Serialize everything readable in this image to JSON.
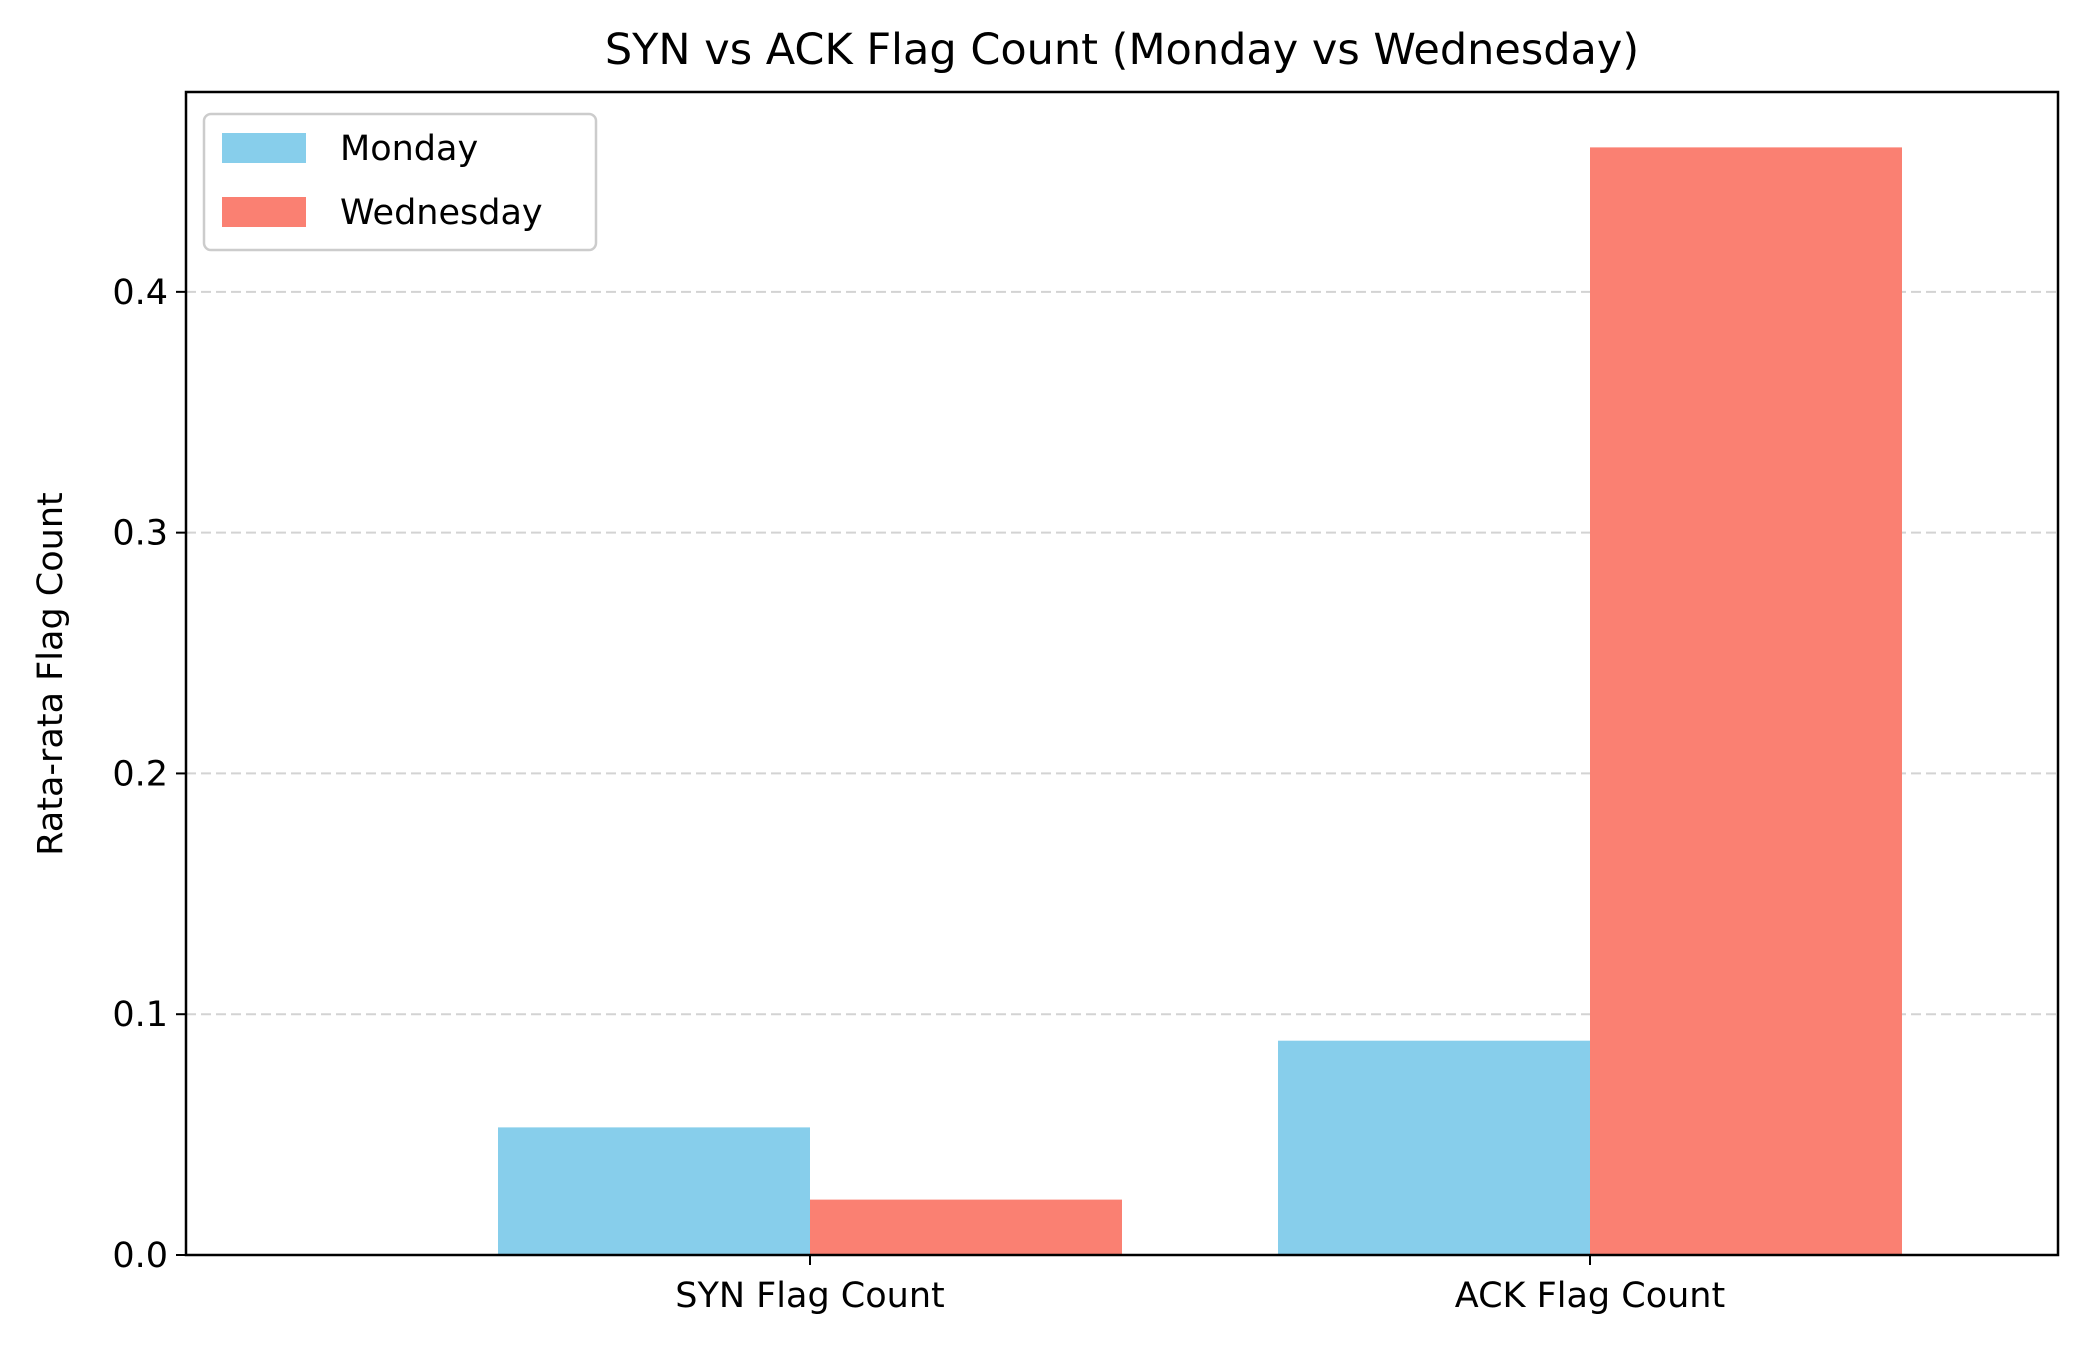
{
  "chart_data": {
    "type": "bar",
    "title": "SYN vs ACK Flag Count (Monday vs Wednesday)",
    "xlabel": "",
    "ylabel": "Rata-rata Flag Count",
    "categories": [
      "SYN Flag Count",
      "ACK Flag Count"
    ],
    "series": [
      {
        "name": "Monday",
        "values": [
          0.053,
          0.089
        ],
        "color": "#87CEEB"
      },
      {
        "name": "Wednesday",
        "values": [
          0.023,
          0.46
        ],
        "color": "#FA8072"
      }
    ],
    "ylim": [
      0,
      0.483
    ],
    "yticks": [
      "0.0",
      "0.1",
      "0.2",
      "0.3",
      "0.4"
    ],
    "grid": "y-dashed",
    "legend_position": "top-left"
  }
}
